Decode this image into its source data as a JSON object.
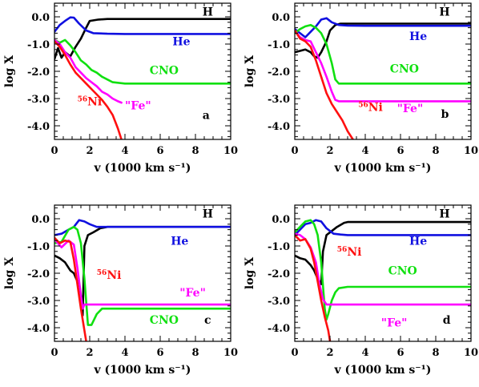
{
  "chart_data": [
    {
      "type": "line",
      "panel_label": "a",
      "xlabel": "v (1000 km s⁻¹)",
      "ylabel": "log X",
      "xlim": [
        0,
        10
      ],
      "ylim": [
        -4.5,
        0.5
      ],
      "x_ticks": [
        "0",
        "2",
        "4",
        "6",
        "8",
        "10"
      ],
      "y_ticks": [
        "0.0",
        "-1.0",
        "-2.0",
        "-3.0",
        "-4.0"
      ],
      "series": [
        {
          "name": "H",
          "color": "#000000",
          "x": [
            0,
            0.2,
            0.4,
            0.6,
            0.9,
            1.2,
            1.5,
            1.8,
            2.0,
            2.5,
            3,
            4,
            6,
            8,
            10
          ],
          "y": [
            -1.55,
            -1.15,
            -1.5,
            -1.3,
            -1.45,
            -1.1,
            -0.8,
            -0.4,
            -0.15,
            -0.1,
            -0.08,
            -0.08,
            -0.08,
            -0.08,
            -0.08
          ]
        },
        {
          "name": "He",
          "color": "#1010e0",
          "x": [
            0,
            0.3,
            0.6,
            0.9,
            1.1,
            1.4,
            1.8,
            2.2,
            3,
            4,
            6,
            8,
            10
          ],
          "y": [
            -0.55,
            -0.3,
            -0.15,
            -0.02,
            -0.03,
            -0.25,
            -0.5,
            -0.6,
            -0.62,
            -0.63,
            -0.63,
            -0.63,
            -0.63
          ]
        },
        {
          "name": "CNO",
          "color": "#10e010",
          "x": [
            0,
            0.3,
            0.6,
            0.9,
            1.2,
            1.5,
            1.8,
            2.1,
            2.4,
            2.7,
            3.0,
            3.3,
            4,
            6,
            8,
            10
          ],
          "y": [
            -0.85,
            -0.95,
            -0.85,
            -1.05,
            -1.3,
            -1.6,
            -1.75,
            -1.95,
            -2.05,
            -2.2,
            -2.3,
            -2.4,
            -2.45,
            -2.45,
            -2.45,
            -2.45
          ]
        },
        {
          "name": "\"Fe\"",
          "color": "#ff00ff",
          "x": [
            0,
            0.3,
            0.6,
            0.9,
            1.2,
            1.5,
            1.8,
            2.1,
            2.4,
            2.7,
            3.0,
            3.3,
            3.6,
            3.8
          ],
          "y": [
            -0.85,
            -1.0,
            -1.3,
            -1.5,
            -1.85,
            -2.05,
            -2.25,
            -2.4,
            -2.55,
            -2.75,
            -2.85,
            -3.0,
            -3.1,
            -3.15
          ]
        },
        {
          "name": "56Ni",
          "color": "#ff1010",
          "x": [
            0,
            0.3,
            0.6,
            0.9,
            1.2,
            1.5,
            1.8,
            2.1,
            2.4,
            2.7,
            3.0,
            3.3,
            3.6,
            3.8
          ],
          "y": [
            -0.9,
            -1.1,
            -1.4,
            -1.75,
            -2.05,
            -2.25,
            -2.45,
            -2.65,
            -2.85,
            -3.05,
            -3.3,
            -3.6,
            -4.1,
            -4.5
          ]
        }
      ],
      "labels": [
        {
          "text": "H",
          "color": "#000000",
          "x": 8.4,
          "y": 0.05
        },
        {
          "text": "He",
          "color": "#1010e0",
          "x": 6.7,
          "y": -1.05
        },
        {
          "text": "CNO",
          "color": "#10e010",
          "x": 5.4,
          "y": -2.1
        },
        {
          "text": "\"Fe\"",
          "color": "#ff00ff",
          "x": 4.0,
          "y": -3.4
        },
        {
          "text": "Ni",
          "sup": "56",
          "color": "#ff1010",
          "x": 1.3,
          "y": -3.25
        },
        {
          "text": "a",
          "color": "#000000",
          "x": 8.4,
          "y": -3.75
        }
      ]
    },
    {
      "type": "line",
      "panel_label": "b",
      "xlabel": "v (1000 km s⁻¹)",
      "ylabel": "log X",
      "xlim": [
        0,
        10
      ],
      "ylim": [
        -4.5,
        0.5
      ],
      "x_ticks": [
        "0",
        "2",
        "4",
        "6",
        "8",
        "10"
      ],
      "y_ticks": [
        "0.0",
        "-1.0",
        "-2.0",
        "-3.0",
        "-4.0"
      ],
      "series": [
        {
          "name": "H",
          "color": "#000000",
          "x": [
            0,
            0.3,
            0.6,
            0.9,
            1.1,
            1.3,
            1.5,
            1.8,
            2.0,
            2.3,
            2.6,
            3,
            4,
            6,
            8,
            10
          ],
          "y": [
            -1.3,
            -1.25,
            -1.2,
            -1.3,
            -1.45,
            -1.5,
            -1.3,
            -0.9,
            -0.5,
            -0.3,
            -0.25,
            -0.25,
            -0.25,
            -0.25,
            -0.25,
            -0.25
          ]
        },
        {
          "name": "He",
          "color": "#1010e0",
          "x": [
            0,
            0.3,
            0.6,
            0.9,
            1.2,
            1.5,
            1.8,
            2.1,
            2.5,
            3,
            4,
            6,
            8,
            10
          ],
          "y": [
            -0.45,
            -0.6,
            -0.75,
            -0.55,
            -0.35,
            -0.1,
            -0.05,
            -0.2,
            -0.3,
            -0.32,
            -0.33,
            -0.33,
            -0.33,
            -0.33
          ]
        },
        {
          "name": "CNO",
          "color": "#10e010",
          "x": [
            0,
            0.3,
            0.6,
            0.9,
            1.2,
            1.5,
            1.8,
            2.1,
            2.3,
            2.5,
            3,
            4,
            6,
            8,
            10
          ],
          "y": [
            -0.6,
            -0.45,
            -0.35,
            -0.3,
            -0.4,
            -0.6,
            -1.0,
            -1.7,
            -2.3,
            -2.45,
            -2.45,
            -2.45,
            -2.45,
            -2.45,
            -2.45
          ]
        },
        {
          "name": "\"Fe\"",
          "color": "#ff00ff",
          "x": [
            0,
            0.3,
            0.6,
            0.9,
            1.2,
            1.5,
            1.8,
            2.1,
            2.3,
            2.5,
            3,
            4,
            6,
            8,
            10
          ],
          "y": [
            -0.5,
            -0.75,
            -0.85,
            -0.9,
            -1.3,
            -1.7,
            -2.2,
            -2.75,
            -3.05,
            -3.1,
            -3.1,
            -3.1,
            -3.1,
            -3.1,
            -3.1
          ]
        },
        {
          "name": "56Ni",
          "color": "#ff1010",
          "x": [
            0,
            0.3,
            0.6,
            0.9,
            1.2,
            1.5,
            1.8,
            2.1,
            2.4,
            2.7,
            3.0,
            3.3
          ],
          "y": [
            -0.5,
            -0.8,
            -0.9,
            -1.1,
            -1.6,
            -2.2,
            -2.8,
            -3.2,
            -3.5,
            -3.8,
            -4.2,
            -4.5
          ]
        }
      ],
      "labels": [
        {
          "text": "H",
          "color": "#000000",
          "x": 8.2,
          "y": 0.05
        },
        {
          "text": "He",
          "color": "#1010e0",
          "x": 6.5,
          "y": -0.85
        },
        {
          "text": "CNO",
          "color": "#10e010",
          "x": 5.4,
          "y": -2.05
        },
        {
          "text": "\"Fe\"",
          "color": "#ff00ff",
          "x": 5.8,
          "y": -3.5
        },
        {
          "text": "Ni",
          "sup": "56",
          "color": "#ff1010",
          "x": 3.6,
          "y": -3.45
        },
        {
          "text": "b",
          "color": "#000000",
          "x": 8.3,
          "y": -3.7
        }
      ]
    },
    {
      "type": "line",
      "panel_label": "c",
      "xlabel": "v (1000 km s⁻¹)",
      "ylabel": "log X",
      "xlim": [
        0,
        10
      ],
      "ylim": [
        -4.5,
        0.5
      ],
      "x_ticks": [
        "0",
        "2",
        "4",
        "6",
        "8",
        "10"
      ],
      "y_ticks": [
        "0.0",
        "-1.0",
        "-2.0",
        "-3.0",
        "-4.0"
      ],
      "series": [
        {
          "name": "H",
          "color": "#000000",
          "x": [
            0,
            0.3,
            0.6,
            0.9,
            1.1,
            1.3,
            1.5,
            1.6,
            1.7,
            1.9,
            2.2,
            2.6,
            3,
            4,
            6,
            8,
            10
          ],
          "y": [
            -1.35,
            -1.45,
            -1.6,
            -1.9,
            -2.0,
            -2.3,
            -3.0,
            -3.55,
            -1.0,
            -0.6,
            -0.5,
            -0.35,
            -0.3,
            -0.3,
            -0.3,
            -0.3,
            -0.3
          ]
        },
        {
          "name": "He",
          "color": "#1010e0",
          "x": [
            0,
            0.4,
            0.8,
            1.1,
            1.4,
            1.7,
            2.0,
            2.4,
            3,
            4,
            6,
            8,
            10
          ],
          "y": [
            -0.6,
            -0.55,
            -0.4,
            -0.3,
            -0.05,
            -0.1,
            -0.2,
            -0.3,
            -0.3,
            -0.3,
            -0.3,
            -0.3,
            -0.3
          ]
        },
        {
          "name": "CNO",
          "color": "#10e010",
          "x": [
            0,
            0.4,
            0.8,
            1.1,
            1.3,
            1.5,
            1.7,
            1.9,
            2.1,
            2.4,
            2.7,
            3.0,
            3.5,
            4,
            6,
            8,
            10
          ],
          "y": [
            -0.9,
            -0.85,
            -0.4,
            -0.3,
            -0.4,
            -0.9,
            -2.2,
            -3.9,
            -3.9,
            -3.5,
            -3.3,
            -3.3,
            -3.3,
            -3.3,
            -3.3,
            -3.3,
            -3.3
          ]
        },
        {
          "name": "\"Fe\"",
          "color": "#ff00ff",
          "x": [
            0,
            0.4,
            0.8,
            1.1,
            1.3,
            1.5,
            1.6,
            1.7,
            2.0,
            3,
            4,
            6,
            8,
            10
          ],
          "y": [
            -0.75,
            -1.05,
            -0.8,
            -0.95,
            -1.8,
            -2.8,
            -3.3,
            -3.15,
            -3.15,
            -3.15,
            -3.15,
            -3.15,
            -3.15,
            -3.15
          ]
        },
        {
          "name": "56Ni",
          "color": "#ff1010",
          "x": [
            0,
            0.3,
            0.6,
            0.9,
            1.1,
            1.3,
            1.5,
            1.7,
            1.8
          ],
          "y": [
            -0.7,
            -0.9,
            -0.8,
            -0.85,
            -1.5,
            -2.4,
            -3.3,
            -4.1,
            -4.5
          ]
        }
      ],
      "labels": [
        {
          "text": "H",
          "color": "#000000",
          "x": 8.4,
          "y": 0.05
        },
        {
          "text": "He",
          "color": "#1010e0",
          "x": 6.6,
          "y": -0.95
        },
        {
          "text": "\"Fe\"",
          "color": "#ff00ff",
          "x": 7.1,
          "y": -2.85
        },
        {
          "text": "Ni",
          "sup": "56",
          "color": "#ff1010",
          "x": 2.4,
          "y": -2.2
        },
        {
          "text": "CNO",
          "color": "#10e010",
          "x": 5.4,
          "y": -3.85
        },
        {
          "text": "c",
          "color": "#000000",
          "x": 8.5,
          "y": -3.85
        }
      ]
    },
    {
      "type": "line",
      "panel_label": "d",
      "xlabel": "v (1000 km s⁻¹)",
      "ylabel": "log X",
      "xlim": [
        0,
        10
      ],
      "ylim": [
        -4.5,
        0.5
      ],
      "x_ticks": [
        "0",
        "2",
        "4",
        "6",
        "8",
        "10"
      ],
      "y_ticks": [
        "0.0",
        "-1.0",
        "-2.0",
        "-3.0",
        "-4.0"
      ],
      "series": [
        {
          "name": "H",
          "color": "#000000",
          "x": [
            0,
            0.3,
            0.6,
            0.9,
            1.1,
            1.3,
            1.5,
            1.6,
            1.8,
            2.1,
            2.4,
            2.8,
            3,
            4,
            6,
            8,
            10
          ],
          "y": [
            -1.35,
            -1.45,
            -1.5,
            -1.7,
            -1.9,
            -2.2,
            -2.4,
            -1.2,
            -0.6,
            -0.45,
            -0.3,
            -0.15,
            -0.12,
            -0.12,
            -0.12,
            -0.12,
            -0.12
          ]
        },
        {
          "name": "He",
          "color": "#1010e0",
          "x": [
            0,
            0.3,
            0.6,
            0.9,
            1.2,
            1.5,
            1.8,
            2.2,
            2.6,
            3,
            4,
            6,
            8,
            10
          ],
          "y": [
            -0.6,
            -0.4,
            -0.2,
            -0.15,
            -0.05,
            -0.1,
            -0.35,
            -0.55,
            -0.58,
            -0.6,
            -0.6,
            -0.6,
            -0.6,
            -0.6
          ]
        },
        {
          "name": "CNO",
          "color": "#10e010",
          "x": [
            0,
            0.3,
            0.6,
            0.9,
            1.1,
            1.3,
            1.5,
            1.7,
            1.8,
            1.9,
            2.1,
            2.3,
            2.5,
            3,
            4,
            6,
            8,
            10
          ],
          "y": [
            -0.5,
            -0.3,
            -0.1,
            -0.05,
            -0.2,
            -0.6,
            -1.6,
            -3.3,
            -3.7,
            -3.5,
            -3.0,
            -2.7,
            -2.55,
            -2.5,
            -2.5,
            -2.5,
            -2.5,
            -2.5
          ]
        },
        {
          "name": "\"Fe\"",
          "color": "#ff00ff",
          "x": [
            0,
            0.3,
            0.6,
            0.9,
            1.2,
            1.4,
            1.6,
            1.8,
            2.0,
            3,
            4,
            6,
            8,
            10
          ],
          "y": [
            -0.55,
            -0.6,
            -0.75,
            -1.05,
            -1.6,
            -2.4,
            -2.95,
            -3.15,
            -3.15,
            -3.15,
            -3.15,
            -3.15,
            -3.15,
            -3.15
          ]
        },
        {
          "name": "56Ni",
          "color": "#ff1010",
          "x": [
            0,
            0.3,
            0.6,
            0.9,
            1.1,
            1.3,
            1.5,
            1.7,
            1.9,
            2.0
          ],
          "y": [
            -0.6,
            -0.8,
            -0.75,
            -1.1,
            -1.6,
            -2.3,
            -3.0,
            -3.6,
            -4.1,
            -4.5
          ]
        }
      ],
      "labels": [
        {
          "text": "H",
          "color": "#000000",
          "x": 8.2,
          "y": 0.05
        },
        {
          "text": "He",
          "color": "#1010e0",
          "x": 6.5,
          "y": -0.95
        },
        {
          "text": "Ni",
          "sup": "56",
          "color": "#ff1010",
          "x": 2.4,
          "y": -1.35
        },
        {
          "text": "CNO",
          "color": "#10e010",
          "x": 5.3,
          "y": -2.05
        },
        {
          "text": "\"Fe\"",
          "color": "#ff00ff",
          "x": 4.9,
          "y": -3.95
        },
        {
          "text": "d",
          "color": "#000000",
          "x": 8.4,
          "y": -3.85
        }
      ]
    }
  ]
}
